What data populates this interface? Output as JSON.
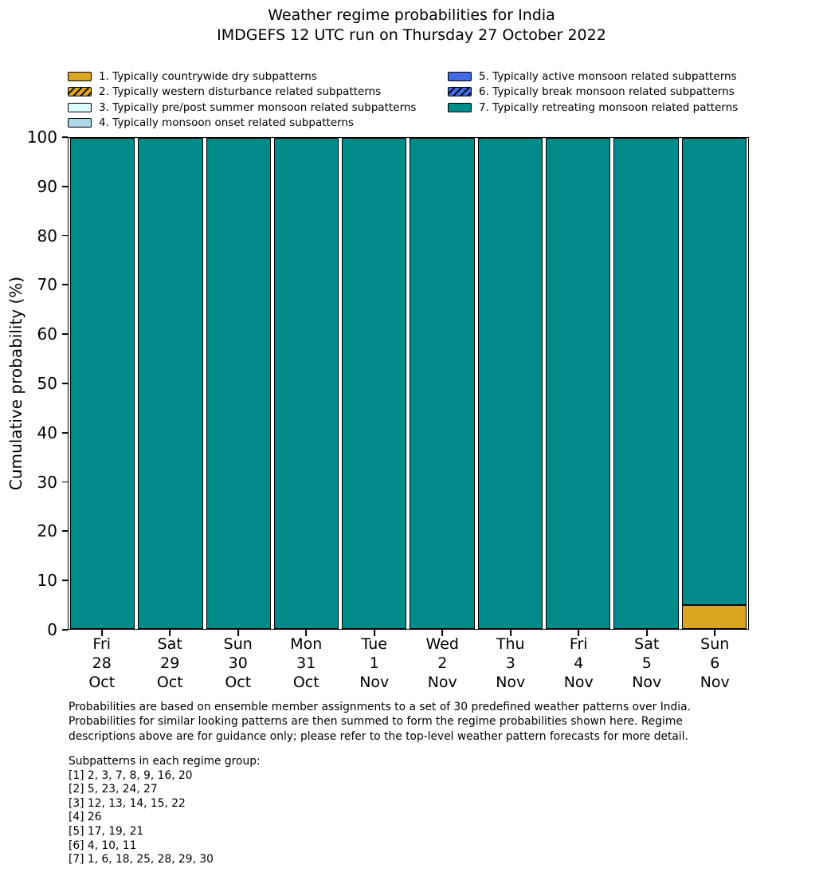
{
  "title": {
    "line1": "Weather regime probabilities for India",
    "line2": "IMDGEFS 12 UTC run on Thursday 27 October 2022"
  },
  "colors": {
    "regime1_gold": "#DAA520",
    "regime3_lightcyan": "#E0FFFF",
    "regime4_lightblue": "#ADD8E6",
    "regime5_royalblue": "#4169E1",
    "regime7_teal": "#008B8B",
    "edge": "#000000"
  },
  "legend": {
    "items": [
      {
        "label": "1. Typically countrywide dry subpatterns",
        "color": "#DAA520",
        "hatch": false
      },
      {
        "label": "2. Typically western disturbance related subpatterns",
        "color": "#DAA520",
        "hatch": true
      },
      {
        "label": "3. Typically pre/post summer monsoon related subpatterns",
        "color": "#E0FFFF",
        "hatch": false
      },
      {
        "label": "4. Typically monsoon onset related subpatterns",
        "color": "#ADD8E6",
        "hatch": false
      },
      {
        "label": "5. Typically active monsoon related subpatterns",
        "color": "#4169E1",
        "hatch": false
      },
      {
        "label": "6. Typically break monsoon related subpatterns",
        "color": "#4169E1",
        "hatch": true
      },
      {
        "label": "7. Typically retreating monsoon related patterns",
        "color": "#008B8B",
        "hatch": false
      }
    ]
  },
  "chart_data": {
    "type": "bar",
    "stacked": true,
    "title": "Weather regime probabilities for India — IMDGEFS 12 UTC run on Thursday 27 October 2022",
    "xlabel": "",
    "ylabel": "Cumulative probability (%)",
    "ylim": [
      0,
      100
    ],
    "yticks": [
      0,
      10,
      20,
      30,
      40,
      50,
      60,
      70,
      80,
      90,
      100
    ],
    "grid": false,
    "legend_position": "above-plot, two columns",
    "categories": [
      {
        "day": "Fri",
        "date": "28",
        "month": "Oct"
      },
      {
        "day": "Sat",
        "date": "29",
        "month": "Oct"
      },
      {
        "day": "Sun",
        "date": "30",
        "month": "Oct"
      },
      {
        "day": "Mon",
        "date": "31",
        "month": "Oct"
      },
      {
        "day": "Tue",
        "date": "1",
        "month": "Nov"
      },
      {
        "day": "Wed",
        "date": "2",
        "month": "Nov"
      },
      {
        "day": "Thu",
        "date": "3",
        "month": "Nov"
      },
      {
        "day": "Fri",
        "date": "4",
        "month": "Nov"
      },
      {
        "day": "Sat",
        "date": "5",
        "month": "Nov"
      },
      {
        "day": "Sun",
        "date": "6",
        "month": "Nov"
      }
    ],
    "series": [
      {
        "name": "1. Typically countrywide dry subpatterns",
        "color": "#DAA520",
        "hatch": false,
        "values": [
          0,
          0,
          0,
          0,
          0,
          0,
          0,
          0,
          0,
          4.8
        ]
      },
      {
        "name": "2. Typically western disturbance related subpatterns",
        "color": "#DAA520",
        "hatch": true,
        "values": [
          0,
          0,
          0,
          0,
          0,
          0,
          0,
          0,
          0,
          0
        ]
      },
      {
        "name": "3. Typically pre/post summer monsoon related subpatterns",
        "color": "#E0FFFF",
        "hatch": false,
        "values": [
          0,
          0,
          0,
          0,
          0,
          0,
          0,
          0,
          0,
          0
        ]
      },
      {
        "name": "4. Typically monsoon onset related subpatterns",
        "color": "#ADD8E6",
        "hatch": false,
        "values": [
          0,
          0,
          0,
          0,
          0,
          0,
          0,
          0,
          0,
          0
        ]
      },
      {
        "name": "5. Typically active monsoon related subpatterns",
        "color": "#4169E1",
        "hatch": false,
        "values": [
          0,
          0,
          0,
          0,
          0,
          0,
          0,
          0,
          0,
          0
        ]
      },
      {
        "name": "6. Typically break monsoon related subpatterns",
        "color": "#4169E1",
        "hatch": true,
        "values": [
          0,
          0,
          0,
          0,
          0,
          0,
          0,
          0,
          0,
          0
        ]
      },
      {
        "name": "7. Typically retreating monsoon related patterns",
        "color": "#008B8B",
        "hatch": false,
        "values": [
          100,
          100,
          100,
          100,
          100,
          100,
          100,
          100,
          100,
          95.2
        ]
      }
    ]
  },
  "footnote": {
    "lines": [
      "Probabilities are based on ensemble member assignments to a set of 30 predefined weather patterns over India.",
      "Probabilities for similar looking patterns are then summed to form the regime probabilities shown here. Regime",
      "descriptions above are for guidance only; please refer to the top-level weather pattern forecasts for more detail."
    ]
  },
  "subpatterns": {
    "heading": "Subpatterns in each regime group:",
    "lines": [
      "[1] 2, 3, 7, 8, 9, 16, 20",
      "[2] 5, 23, 24, 27",
      "[3] 12, 13, 14, 15, 22",
      "[4] 26",
      "[5] 17, 19, 21",
      "[6] 4, 10, 11",
      "[7] 1, 6, 18, 25, 28, 29, 30"
    ]
  }
}
